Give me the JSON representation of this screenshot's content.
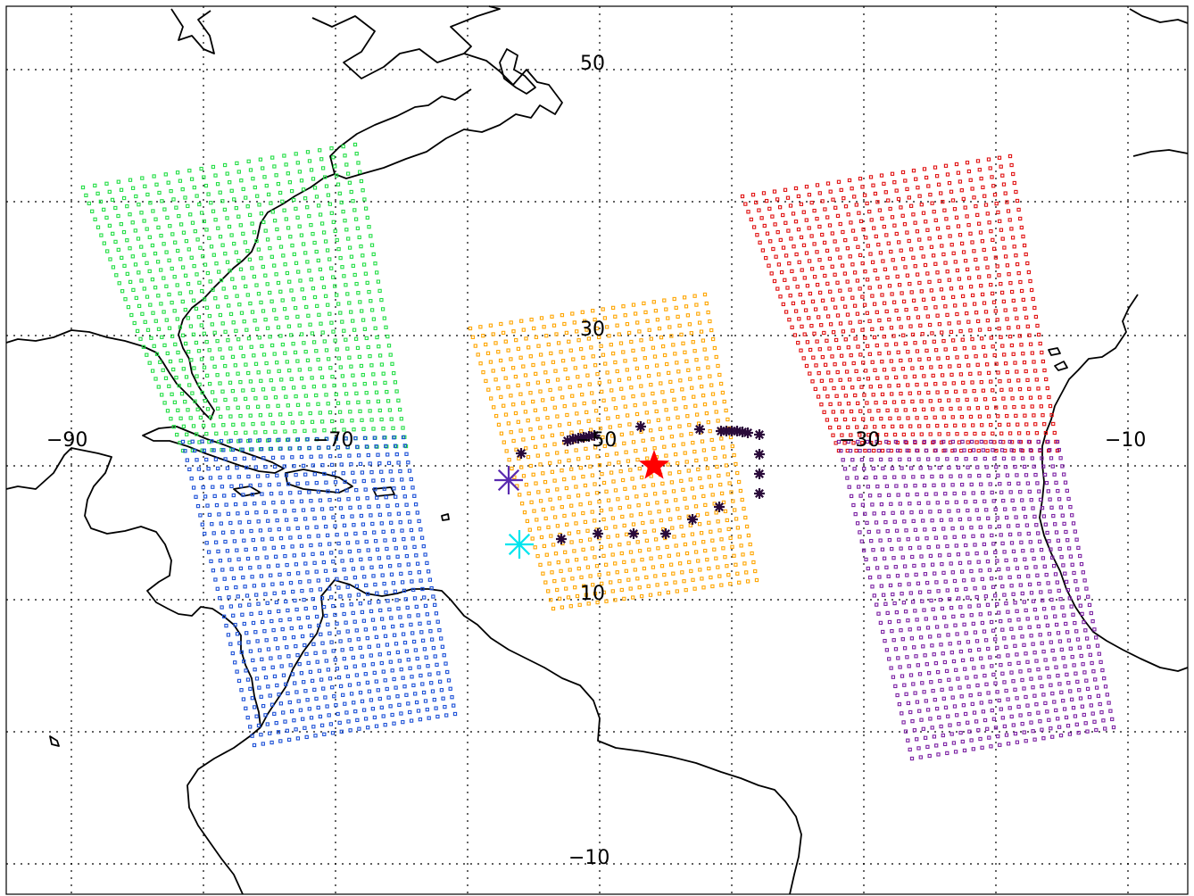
{
  "map": {
    "lat_labels": {
      "lat_50": "50",
      "lat_30": "30",
      "lat_10": "10",
      "lat_neg10": "−10"
    },
    "lon_labels": {
      "lon_neg90": "−90",
      "lon_neg70": "−70",
      "lon_neg50": "−50",
      "lon_neg30": "−30",
      "lon_neg10": "−10"
    },
    "swaths": [
      {
        "name": "green-swath",
        "color": "#22dd44"
      },
      {
        "name": "blue-swath",
        "color": "#1a4fd6"
      },
      {
        "name": "orange-swath",
        "color": "#ffa500"
      },
      {
        "name": "red-swath",
        "color": "#e01010"
      },
      {
        "name": "purple-swath",
        "color": "#7a1fa2"
      }
    ],
    "markers": {
      "main_star_color": "#ff0000",
      "purple_asterisk_color": "#5a2bb0",
      "cyan_asterisk_color": "#00e5ee",
      "station_asterisk_color": "#2a0a3a"
    }
  }
}
